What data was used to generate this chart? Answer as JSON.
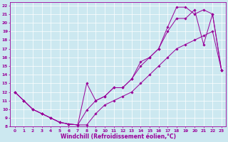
{
  "bg_color": "#cce8f0",
  "line_color": "#990099",
  "xlabel": "Windchill (Refroidissement éolien,°C)",
  "xlim": [
    -0.5,
    23.5
  ],
  "ylim": [
    8,
    22.4
  ],
  "xticks": [
    0,
    1,
    2,
    3,
    4,
    5,
    6,
    7,
    8,
    9,
    10,
    11,
    12,
    13,
    14,
    15,
    16,
    17,
    18,
    19,
    20,
    21,
    22,
    23
  ],
  "yticks": [
    8,
    9,
    10,
    11,
    12,
    13,
    14,
    15,
    16,
    17,
    18,
    19,
    20,
    21,
    22
  ],
  "series": [
    {
      "x": [
        0,
        1,
        2,
        3,
        4,
        5,
        6,
        7,
        8,
        9,
        10,
        11,
        12,
        13,
        14,
        15,
        16,
        17,
        18,
        19,
        20,
        21,
        22,
        23
      ],
      "y": [
        12,
        11,
        10,
        9.5,
        9,
        8.5,
        8.3,
        8.2,
        13.0,
        11.0,
        11.5,
        12.5,
        12.5,
        13.5,
        15.5,
        16.0,
        17.0,
        19.5,
        21.8,
        21.8,
        21.0,
        21.5,
        21.0,
        14.5
      ]
    },
    {
      "x": [
        0,
        1,
        2,
        3,
        4,
        5,
        6,
        7,
        8,
        9,
        10,
        11,
        12,
        13,
        14,
        15,
        16,
        17,
        18,
        19,
        20,
        21,
        22,
        23
      ],
      "y": [
        12,
        11,
        10,
        9.5,
        9,
        8.5,
        8.3,
        8.2,
        9.9,
        11.0,
        11.5,
        12.5,
        12.5,
        13.5,
        15.0,
        16.0,
        17.0,
        19.0,
        20.5,
        20.5,
        21.5,
        17.5,
        21.0,
        14.5
      ]
    },
    {
      "x": [
        0,
        1,
        2,
        3,
        4,
        5,
        6,
        7,
        8,
        9,
        10,
        11,
        12,
        13,
        14,
        15,
        16,
        17,
        18,
        19,
        20,
        21,
        22,
        23
      ],
      "y": [
        12,
        11,
        10,
        9.5,
        9,
        8.5,
        8.3,
        8.2,
        8.2,
        9.5,
        10.5,
        11.0,
        11.5,
        12.0,
        13.0,
        14.0,
        15.0,
        16.0,
        17.0,
        17.5,
        18.0,
        18.5,
        19.0,
        14.5
      ]
    }
  ]
}
